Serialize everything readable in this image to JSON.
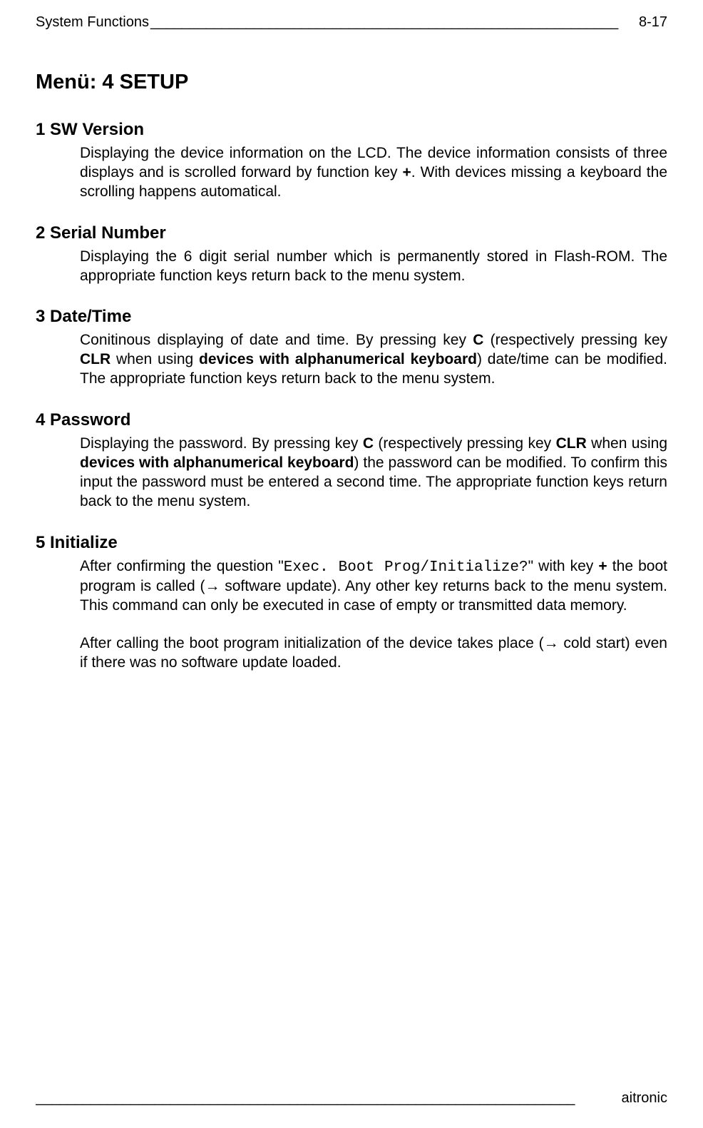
{
  "header": {
    "left": "System Functions",
    "underscore_fill": "___________________________________________________________",
    "right": "8-17"
  },
  "page_title": "Menü: 4 SETUP",
  "sections": [
    {
      "heading": "1 SW Version",
      "paragraphs": [
        {
          "spans": [
            {
              "text": "Displaying the device information on the LCD. The device information consists of three displays and is scrolled forward by function key "
            },
            {
              "text": "+",
              "bold": true
            },
            {
              "text": ". With devices missing a keyboard the scrolling happens automatical."
            }
          ]
        }
      ]
    },
    {
      "heading": "2 Serial Number",
      "paragraphs": [
        {
          "spans": [
            {
              "text": "Displaying the 6 digit serial number which is permanently stored in Flash-ROM. The appropriate function keys return back to the menu system."
            }
          ]
        }
      ]
    },
    {
      "heading": "3 Date/Time",
      "paragraphs": [
        {
          "spans": [
            {
              "text": "Conitinous displaying of date and time. By pressing key "
            },
            {
              "text": "C",
              "bold": true
            },
            {
              "text": " (respectively pressing key "
            },
            {
              "text": "CLR",
              "bold": true
            },
            {
              "text": " when using "
            },
            {
              "text": "devices with alphanumerical keyboard",
              "bold": true
            },
            {
              "text": ") date/time can be modified. The appropriate function keys return back to the menu system."
            }
          ]
        }
      ]
    },
    {
      "heading": "4 Password",
      "paragraphs": [
        {
          "spans": [
            {
              "text": "Displaying the password. By pressing key "
            },
            {
              "text": "C",
              "bold": true
            },
            {
              "text": " (respectively pressing key "
            },
            {
              "text": "CLR",
              "bold": true
            },
            {
              "text": " when using "
            },
            {
              "text": "devices with alphanumerical keyboard",
              "bold": true
            },
            {
              "text": ") the password can be modified. To confirm this input the password must be entered a second time. The appropriate function keys return back to the menu system."
            }
          ]
        }
      ]
    },
    {
      "heading": "5 Initialize",
      "paragraphs": [
        {
          "spans": [
            {
              "text": "After confirming the question \""
            },
            {
              "text": "Exec. Boot Prog/Initialize?",
              "mono": true
            },
            {
              "text": "\" with key "
            },
            {
              "text": "+",
              "bold": true
            },
            {
              "text": " the boot program is called (→ software update).  Any other key returns back to the menu system. This command can only be executed in case of empty or transmitted data memory."
            }
          ]
        },
        {
          "spans": [
            {
              "text": "After calling the boot program initialization of the device takes place (→ cold start) even if there was no software update loaded."
            }
          ]
        }
      ]
    }
  ],
  "footer": {
    "underscore_fill": "____________________________________________________________________",
    "right": "aitronic"
  }
}
